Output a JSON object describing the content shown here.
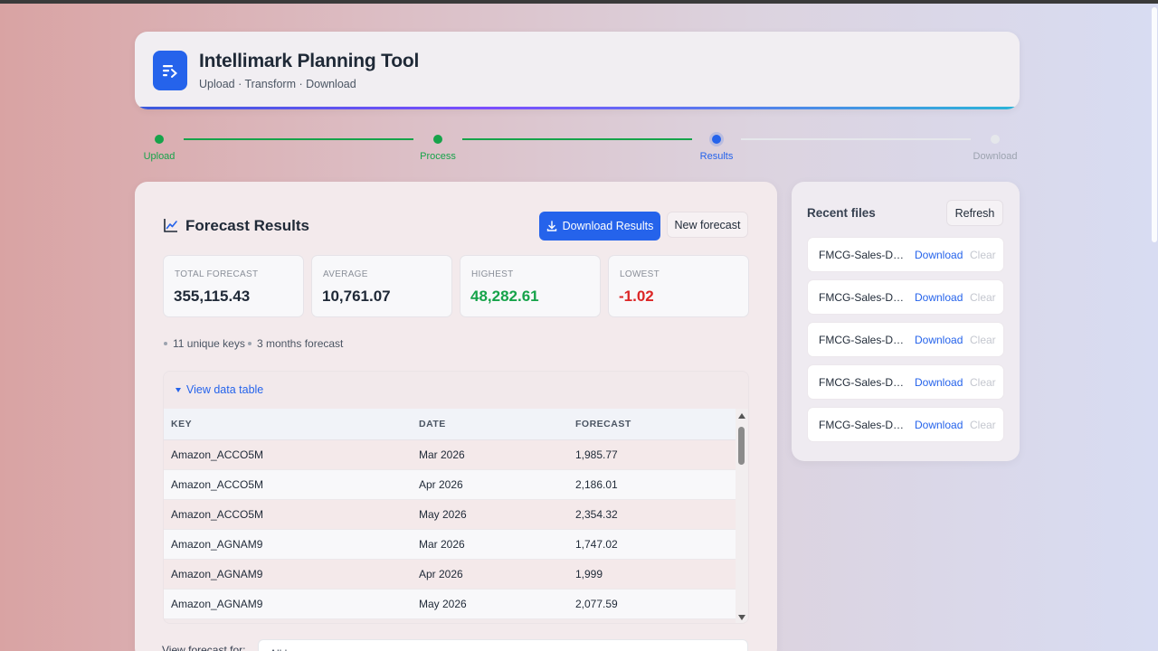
{
  "header": {
    "title": "Intellimark Planning Tool",
    "subtitle": "Upload · Transform · Download"
  },
  "stepper": {
    "steps": [
      {
        "label": "Upload",
        "state": "done"
      },
      {
        "label": "Process",
        "state": "done"
      },
      {
        "label": "Results",
        "state": "active"
      },
      {
        "label": "Download",
        "state": "pending"
      }
    ]
  },
  "results": {
    "title": "Forecast Results",
    "download_label": "Download Results",
    "new_forecast_label": "New forecast",
    "stats": [
      {
        "label": "TOTAL FORECAST",
        "value": "355,115.43",
        "color": "#1f2937"
      },
      {
        "label": "AVERAGE",
        "value": "10,761.07",
        "color": "#1f2937"
      },
      {
        "label": "HIGHEST",
        "value": "48,282.61",
        "color": "#16a34a"
      },
      {
        "label": "LOWEST",
        "value": "-1.02",
        "color": "#dc2626"
      }
    ],
    "meta": [
      "11 unique keys",
      "3 months forecast"
    ],
    "table": {
      "toggle_label": "View data table",
      "columns": [
        "KEY",
        "DATE",
        "FORECAST"
      ],
      "rows": [
        [
          "Amazon_ACCO5M",
          "Mar 2026",
          "1,985.77"
        ],
        [
          "Amazon_ACCO5M",
          "Apr 2026",
          "2,186.01"
        ],
        [
          "Amazon_ACCO5M",
          "May 2026",
          "2,354.32"
        ],
        [
          "Amazon_AGNAM9",
          "Mar 2026",
          "1,747.02"
        ],
        [
          "Amazon_AGNAM9",
          "Apr 2026",
          "1,999"
        ],
        [
          "Amazon_AGNAM9",
          "May 2026",
          "2,077.59"
        ]
      ]
    },
    "view_for_label": "View forecast for:",
    "view_for_value": "All keys"
  },
  "sidebar": {
    "title": "Recent files",
    "refresh_label": "Refresh",
    "files": [
      {
        "name": "FMCG-Sales-Data",
        "download": "Download",
        "clear": "Clear"
      },
      {
        "name": "FMCG-Sales-Data",
        "download": "Download",
        "clear": "Clear"
      },
      {
        "name": "FMCG-Sales-Data",
        "download": "Download",
        "clear": "Clear"
      },
      {
        "name": "FMCG-Sales-Data",
        "download": "Download",
        "clear": "Clear"
      },
      {
        "name": "FMCG-Sales-Data",
        "download": "Download",
        "clear": "Clear"
      }
    ]
  },
  "colors": {
    "accent": "#2563eb",
    "done": "#16a34a",
    "pending": "#d1d5db"
  }
}
